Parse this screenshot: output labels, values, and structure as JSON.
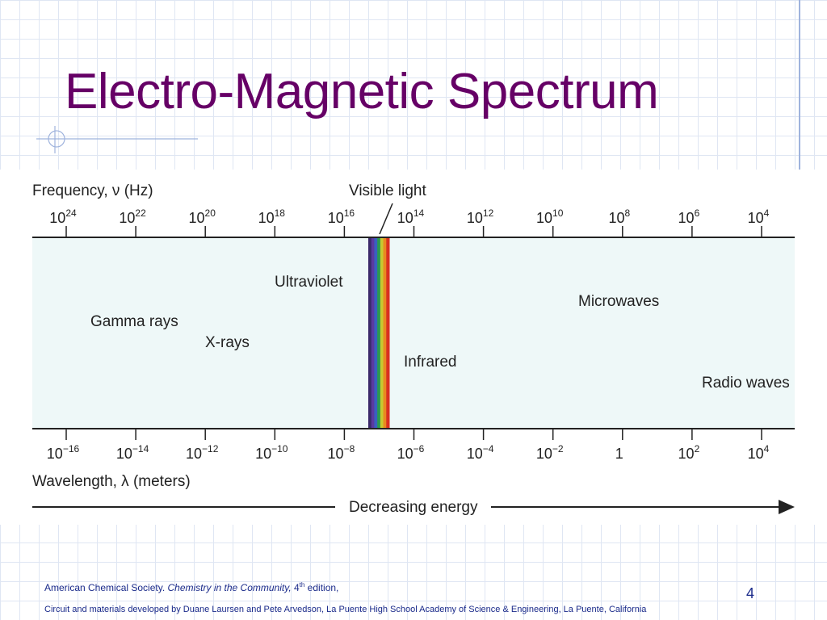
{
  "slide": {
    "title": "Electro-Magnetic Spectrum",
    "page_number": "4",
    "footer": {
      "line1_prefix": "American Chemical Society. ",
      "line1_italic": "Chemistry in the Community,",
      "line1_edition_num": " 4",
      "line1_edition_sup": "th",
      "line1_suffix": " edition,",
      "line2": "Circuit and materials developed by Duane Laursen and Pete Arvedson, La Puente High School Academy of Science & Engineering, La Puente, California"
    }
  },
  "colors": {
    "title": "#660066",
    "footer_text": "#1a2a8a",
    "spectrum_fill": "#eef8f8",
    "grid": "#dfe6f3",
    "accent_line": "#9fb3dd"
  },
  "spectrum": {
    "frequency_label": "Frequency, ν (Hz)",
    "wavelength_label": "Wavelength, λ (meters)",
    "visible_label": "Visible light",
    "energy_label": "Decreasing energy",
    "frequency_ticks": [
      {
        "base": "10",
        "exp": "24"
      },
      {
        "base": "10",
        "exp": "22"
      },
      {
        "base": "10",
        "exp": "20"
      },
      {
        "base": "10",
        "exp": "18"
      },
      {
        "base": "10",
        "exp": "16"
      },
      {
        "base": "10",
        "exp": "14"
      },
      {
        "base": "10",
        "exp": "12"
      },
      {
        "base": "10",
        "exp": "10"
      },
      {
        "base": "10",
        "exp": "8"
      },
      {
        "base": "10",
        "exp": "6"
      },
      {
        "base": "10",
        "exp": "4"
      }
    ],
    "wavelength_ticks": [
      {
        "base": "10",
        "exp": "−16"
      },
      {
        "base": "10",
        "exp": "−14"
      },
      {
        "base": "10",
        "exp": "−12"
      },
      {
        "base": "10",
        "exp": "−10"
      },
      {
        "base": "10",
        "exp": "−8"
      },
      {
        "base": "10",
        "exp": "−6"
      },
      {
        "base": "10",
        "exp": "−4"
      },
      {
        "base": "10",
        "exp": "−2"
      },
      {
        "base": "1",
        "exp": ""
      },
      {
        "base": "10",
        "exp": "2"
      },
      {
        "base": "10",
        "exp": "4"
      }
    ],
    "regions": [
      "Gamma rays",
      "X-rays",
      "Ultraviolet",
      "Infrared",
      "Microwaves",
      "Radio waves"
    ],
    "visible_band_colors": [
      "#3a2a6a",
      "#5a3aa0",
      "#3a60c0",
      "#2a9a50",
      "#c8c830",
      "#e88a20",
      "#d83020"
    ]
  }
}
